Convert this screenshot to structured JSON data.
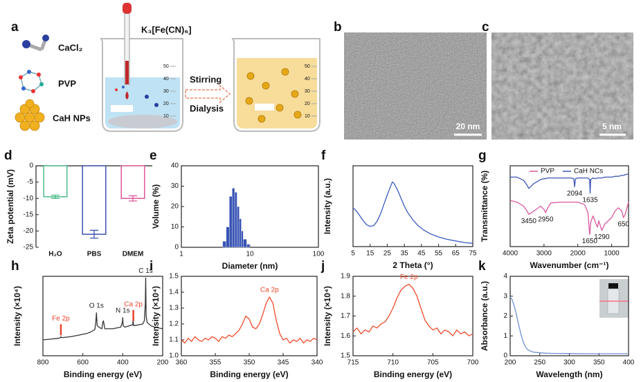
{
  "schematic": {
    "label": "a",
    "reagents": [
      "CaCl₂",
      "PVP",
      "CaH NPs"
    ],
    "precursor": "K₃[Fe(CN)₆]",
    "steps": [
      "Stirring",
      "Dialysis"
    ],
    "beaker_scale": [
      50,
      40,
      30,
      20,
      10
    ]
  },
  "tem": [
    {
      "label": "b",
      "scale_bar": "20 nm"
    },
    {
      "label": "c",
      "scale_bar": "5 nm"
    }
  ],
  "chart_data": [
    {
      "label": "d",
      "type": "bar",
      "ylabel": "Zeta potential (mV)",
      "categories": [
        "H₂O",
        "PBS",
        "DMEM"
      ],
      "values": [
        -9.5,
        -21,
        -10
      ],
      "errors": [
        0.5,
        1.2,
        0.8
      ],
      "colors": [
        "#4cbb8a",
        "#3c4fb0",
        "#e0569a"
      ],
      "ylim": [
        -25,
        0
      ],
      "yticks": [
        0,
        -5,
        -10,
        -15,
        -20,
        -25
      ]
    },
    {
      "label": "e",
      "type": "histogram",
      "xlabel": "Diameter (nm)",
      "ylabel": "Volume (%)",
      "bins": [
        4,
        4.5,
        5,
        5.5,
        6,
        6.5,
        7,
        7.5,
        8,
        9,
        10
      ],
      "values": [
        3,
        10,
        25,
        29,
        27,
        20,
        14,
        8,
        4,
        1.5
      ],
      "color": "#3a55b5",
      "xscale": "log",
      "xlim": [
        1,
        100
      ],
      "xticks": [
        1,
        10,
        100
      ],
      "ylim": [
        0,
        40
      ],
      "yticks": [
        0,
        10,
        20,
        30,
        40
      ]
    },
    {
      "label": "f",
      "type": "line",
      "xlabel": "2 Theta (°)",
      "ylabel": "Intensity (a.u.)",
      "x": [
        5,
        7,
        9,
        11,
        13,
        15,
        17,
        19,
        21,
        23,
        25,
        27,
        28,
        29,
        31,
        33,
        35,
        37,
        40,
        43,
        46,
        50,
        55,
        60,
        65,
        70,
        75
      ],
      "series": [
        {
          "color": "#3b5bc0",
          "values": [
            48,
            44,
            38,
            32,
            27,
            25,
            26,
            31,
            40,
            52,
            64,
            75,
            80,
            78,
            70,
            60,
            50,
            42,
            33,
            26,
            21,
            16,
            12,
            9,
            7,
            5,
            4
          ]
        }
      ],
      "xlim": [
        5,
        75
      ],
      "xticks": [
        5,
        15,
        25,
        35,
        45,
        55,
        65,
        75
      ],
      "ylim": [
        0,
        100
      ]
    },
    {
      "label": "g",
      "type": "line",
      "xlabel": "Wavenumber (cm⁻¹)",
      "ylabel": "Transmittance (%)",
      "legend": "top",
      "x": [
        4000,
        3800,
        3600,
        3500,
        3450,
        3400,
        3300,
        3100,
        3000,
        2950,
        2900,
        2800,
        2500,
        2200,
        2120,
        2094,
        2070,
        2000,
        1800,
        1700,
        1650,
        1635,
        1620,
        1550,
        1480,
        1420,
        1380,
        1290,
        1200,
        1100,
        1000,
        900,
        800,
        700,
        650,
        600,
        500
      ],
      "series": [
        {
          "name": "PVP",
          "color": "#d9589e",
          "values": [
            57,
            55,
            50,
            44,
            40,
            41,
            44,
            50,
            46,
            42,
            47,
            54,
            55,
            55,
            55,
            55,
            55,
            55,
            52,
            42,
            15,
            20,
            30,
            38,
            30,
            24,
            32,
            20,
            28,
            32,
            36,
            44,
            48,
            44,
            36,
            40,
            55
          ],
          "peaks": [
            3450,
            2950,
            1650,
            1290,
            650
          ]
        },
        {
          "name": "CaH NCs",
          "color": "#3b55b5",
          "values": [
            86,
            86,
            82,
            76,
            72,
            74,
            78,
            83,
            84,
            84,
            85,
            85,
            85,
            85,
            84,
            74,
            84,
            85,
            85,
            85,
            83,
            66,
            83,
            85,
            84,
            85,
            85,
            85,
            86,
            86,
            86,
            87,
            87,
            88,
            88,
            89,
            90
          ],
          "peaks": [
            2094,
            1635
          ]
        }
      ],
      "xlim": [
        4000,
        500
      ],
      "xticks": [
        4000,
        3000,
        2000,
        1000
      ],
      "ylim": [
        0,
        100
      ]
    },
    {
      "label": "h",
      "type": "line",
      "xlabel": "Binding energy (eV)",
      "ylabel": "Intensity (×10⁴)",
      "x": [
        800,
        760,
        720,
        712,
        710,
        708,
        700,
        660,
        620,
        580,
        560,
        540,
        535,
        532,
        528,
        520,
        505,
        500,
        497,
        490,
        450,
        410,
        402,
        400,
        398,
        390,
        350,
        348,
        346,
        340,
        300,
        292,
        287,
        285,
        283,
        278,
        260,
        240,
        220,
        200
      ],
      "series": [
        {
          "color": "#333333",
          "values": [
            2.0,
            2.1,
            2.2,
            2.3,
            2.4,
            2.3,
            2.3,
            2.4,
            2.6,
            2.8,
            3.0,
            3.3,
            4.2,
            5.4,
            3.8,
            3.6,
            3.4,
            4.2,
            4.4,
            3.4,
            3.4,
            3.6,
            4.2,
            4.8,
            3.8,
            3.6,
            3.9,
            4.6,
            3.8,
            3.8,
            4.0,
            4.4,
            6.5,
            9.8,
            5.0,
            4.2,
            3.8,
            3.6,
            3.5,
            3.4
          ]
        }
      ],
      "annotations": [
        {
          "text": "Fe 2p",
          "x": 710,
          "color": "#e8442a",
          "marker": true
        },
        {
          "text": "O 1s",
          "x": 532,
          "color": "#222222"
        },
        {
          "text": "N 1s",
          "x": 400,
          "color": "#222222"
        },
        {
          "text": "Ca 2p",
          "x": 347,
          "color": "#e8442a",
          "marker": true
        },
        {
          "text": "C 1s",
          "x": 285,
          "color": "#222222"
        }
      ],
      "xlim": [
        800,
        200
      ],
      "xticks": [
        800,
        600,
        400,
        200
      ],
      "ylim": [
        0,
        10
      ]
    },
    {
      "label": "i",
      "type": "line",
      "xlabel": "Binding energy (eV)",
      "ylabel": "Intensity (×10⁴)",
      "x": [
        360,
        359.5,
        359,
        358.5,
        358,
        357.5,
        357,
        356.5,
        356,
        355.5,
        355,
        354.5,
        354,
        353.5,
        353,
        352.5,
        352,
        351.5,
        351,
        350.5,
        350,
        349.5,
        349,
        348.5,
        348,
        347.5,
        347,
        346.5,
        346,
        345.5,
        345,
        344.5,
        344,
        343.5,
        343,
        342.5,
        342,
        341.5,
        341,
        340.5,
        340
      ],
      "series": [
        {
          "color": "#f04a2a",
          "values": [
            1.1,
            1.08,
            1.11,
            1.09,
            1.12,
            1.1,
            1.09,
            1.11,
            1.1,
            1.12,
            1.11,
            1.09,
            1.12,
            1.11,
            1.13,
            1.12,
            1.14,
            1.16,
            1.2,
            1.25,
            1.23,
            1.18,
            1.17,
            1.2,
            1.26,
            1.33,
            1.37,
            1.33,
            1.22,
            1.14,
            1.1,
            1.11,
            1.08,
            1.1,
            1.09,
            1.11,
            1.08,
            1.1,
            1.09,
            1.11,
            1.1
          ]
        }
      ],
      "annotations": [
        {
          "text": "Ca 2p",
          "x": 347,
          "color": "#f04a2a"
        }
      ],
      "xlim": [
        360,
        340
      ],
      "xticks": [
        360,
        355,
        350,
        345,
        340
      ],
      "ylim": [
        1,
        1.5
      ],
      "yticks": [
        {
          "value": 1,
          "label": "1.0"
        },
        1.1,
        1.2,
        1.3,
        1.4,
        1.5
      ]
    },
    {
      "label": "j",
      "type": "line",
      "xlabel": "Binding energy (eV)",
      "ylabel": "Intensity (×10⁴)",
      "x": [
        715,
        714.5,
        714,
        713.5,
        713,
        712.5,
        712,
        711.5,
        711,
        710.5,
        710,
        709.5,
        709,
        708.5,
        708,
        707.5,
        707,
        706.5,
        706,
        705.5,
        705,
        704.5,
        704,
        703.5,
        703,
        702.5,
        702,
        701.5,
        701,
        700.5,
        700
      ],
      "series": [
        {
          "color": "#f04a2a",
          "values": [
            1.62,
            1.64,
            1.61,
            1.63,
            1.62,
            1.65,
            1.64,
            1.66,
            1.67,
            1.7,
            1.74,
            1.79,
            1.83,
            1.85,
            1.86,
            1.84,
            1.8,
            1.74,
            1.68,
            1.65,
            1.63,
            1.64,
            1.61,
            1.63,
            1.62,
            1.6,
            1.63,
            1.61,
            1.62,
            1.6,
            1.61
          ]
        }
      ],
      "annotations": [
        {
          "text": "Fe 2p",
          "x": 708,
          "color": "#f04a2a"
        }
      ],
      "xlim": [
        715,
        700
      ],
      "xticks": [
        715,
        710,
        705,
        700
      ],
      "ylim": [
        1.5,
        1.9
      ],
      "yticks": [
        1.5,
        1.6,
        1.7,
        1.8,
        1.9
      ]
    },
    {
      "label": "k",
      "type": "line",
      "xlabel": "Wavelength (nm)",
      "ylabel": "Absorbance (a.u.)",
      "x": [
        200,
        203,
        206,
        210,
        214,
        218,
        222,
        226,
        230,
        235,
        240,
        250,
        260,
        275,
        300,
        325,
        350,
        375,
        400
      ],
      "series": [
        {
          "color": "#6f8fd0",
          "values": [
            2.95,
            2.85,
            2.6,
            2.15,
            1.6,
            1.1,
            0.7,
            0.45,
            0.3,
            0.22,
            0.18,
            0.15,
            0.13,
            0.12,
            0.11,
            0.1,
            0.1,
            0.1,
            0.1
          ]
        }
      ],
      "xlim": [
        200,
        400
      ],
      "xticks": [
        200,
        250,
        300,
        350,
        400
      ],
      "ylim": [
        0,
        4
      ],
      "yticks": [
        0,
        1,
        2,
        3,
        4
      ]
    }
  ]
}
